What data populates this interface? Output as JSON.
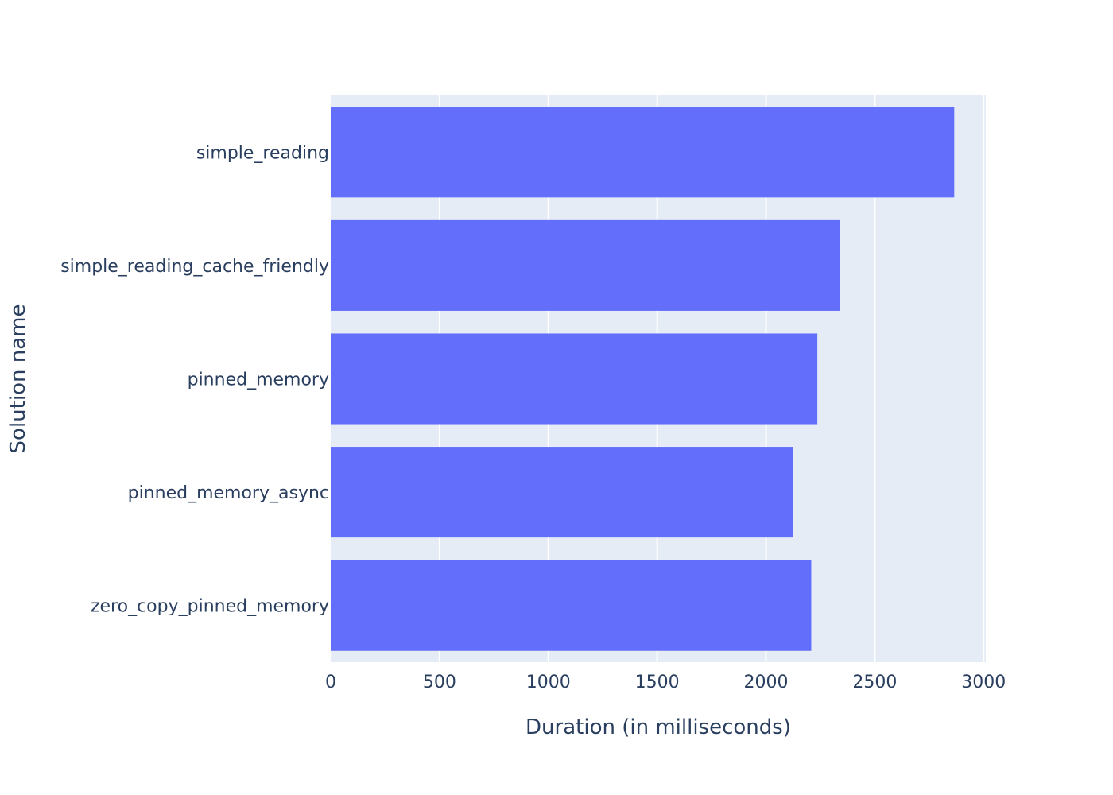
{
  "chart_data": {
    "type": "bar",
    "orientation": "horizontal",
    "categories": [
      "simple_reading",
      "simple_reading_cache_friendly",
      "pinned_memory",
      "pinned_memory_async",
      "zero_copy_pinned_memory"
    ],
    "values": [
      2865,
      2338,
      2236,
      2125,
      2208
    ],
    "xlabel": "Duration (in milliseconds)",
    "ylabel": "Solution name",
    "xlim": [
      0,
      3010
    ],
    "xticks": [
      0,
      500,
      1000,
      1500,
      2000,
      2500,
      3000
    ],
    "xtick_labels": [
      "0",
      "500",
      "1000",
      "1500",
      "2000",
      "2500",
      "3000"
    ],
    "grid": true,
    "legend": "none",
    "colors": {
      "bar": "#636efa",
      "plot_background": "#e5ecf6",
      "grid": "#ffffff",
      "text": "#2a3f5f"
    }
  }
}
